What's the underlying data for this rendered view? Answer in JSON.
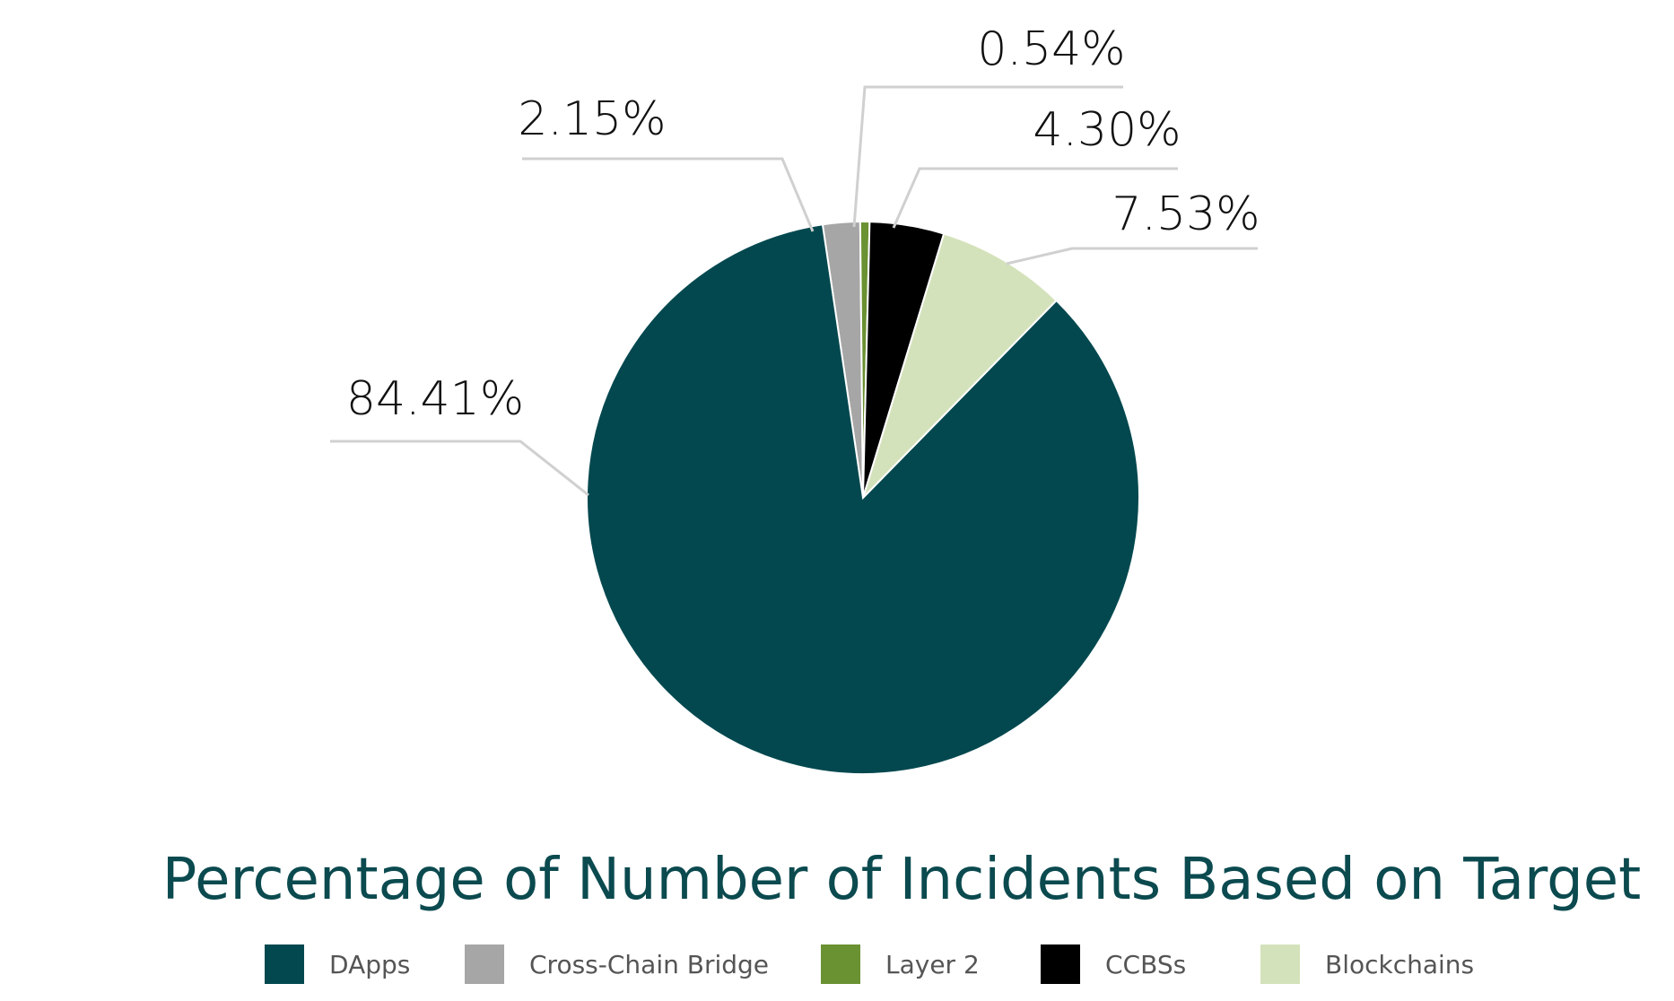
{
  "chart_data": {
    "type": "pie",
    "title": "Percentage of Number of Incidents Based on Target",
    "slices": [
      {
        "name": "DApps",
        "value": 84.41,
        "label": "84.41%",
        "color": "#03484f"
      },
      {
        "name": "Cross-Chain Bridge",
        "value": 2.15,
        "label": "2.15%",
        "color": "#a6a6a6"
      },
      {
        "name": "Layer 2",
        "value": 0.54,
        "label": "0.54%",
        "color": "#6a9132"
      },
      {
        "name": "CCBSs",
        "value": 4.3,
        "label": "4.30%",
        "color": "#000000"
      },
      {
        "name": "Blockchains",
        "value": 7.53,
        "label": "7.53%",
        "color": "#d4e2bb"
      }
    ],
    "legend_position": "bottom",
    "data_labels": "outside"
  }
}
